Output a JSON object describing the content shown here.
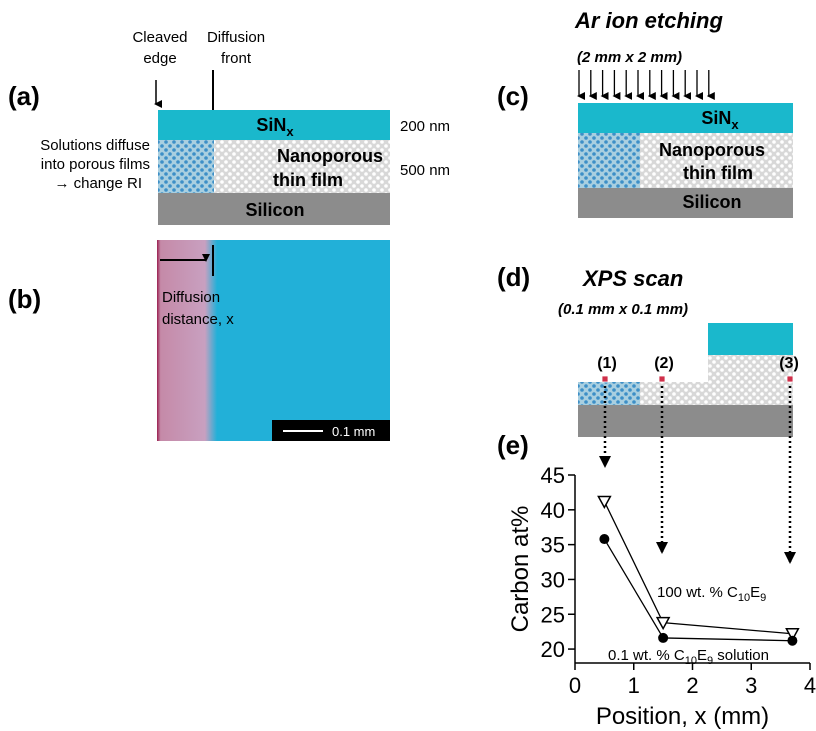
{
  "panel_labels": [
    "(a)",
    "(b)",
    "(c)",
    "(d)",
    "(e)"
  ],
  "panel_a": {
    "cleaved_edge": [
      "Cleaved",
      "edge"
    ],
    "diffusion_front": [
      "Diffusion",
      "front"
    ],
    "sin_label": [
      "SiN",
      "x"
    ],
    "film_label": [
      "Nanoporous",
      "thin film"
    ],
    "silicon_label": "Silicon",
    "thicknesses": [
      "200 nm",
      "500 nm"
    ],
    "note": [
      "Solutions diffuse",
      "into porous films",
      "→ change RI"
    ]
  },
  "panel_b": {
    "diffusion_distance": [
      "Diffusion",
      "distance, x"
    ],
    "scale_bar": "0.1 mm"
  },
  "panel_c": {
    "title": "Ar ion etching",
    "subtitle": "(2 mm x 2 mm)",
    "sin_label": [
      "SiN",
      "x"
    ],
    "film_label": [
      "Nanoporous",
      "thin film"
    ],
    "silicon_label": "Silicon"
  },
  "panel_d": {
    "title": "XPS scan",
    "subtitle": "(0.1 mm x 0.1 mm)",
    "positions": [
      "(1)",
      "(2)",
      "(3)"
    ]
  },
  "chart_data": {
    "type": "line",
    "x_label": "Position, x (mm)",
    "y_label": "Carbon at%",
    "x": [
      0.5,
      1.5,
      3.7
    ],
    "series": [
      {
        "name": [
          "100 wt. % C",
          "10",
          "E",
          "9"
        ],
        "color": "#000000",
        "marker": "triangle-open",
        "values": [
          41.2,
          23.8,
          22.2
        ]
      },
      {
        "name": [
          "0.1 wt. % C",
          "10",
          "E",
          "9",
          " solution"
        ],
        "color": "#000000",
        "marker": "circle",
        "values": [
          35.8,
          21.6,
          21.2
        ]
      }
    ],
    "xlim": [
      0,
      4
    ],
    "ylim": [
      18,
      45
    ],
    "xticks": [
      0,
      1,
      2,
      3,
      4
    ],
    "yticks": [
      20,
      25,
      30,
      35,
      40,
      45
    ]
  }
}
